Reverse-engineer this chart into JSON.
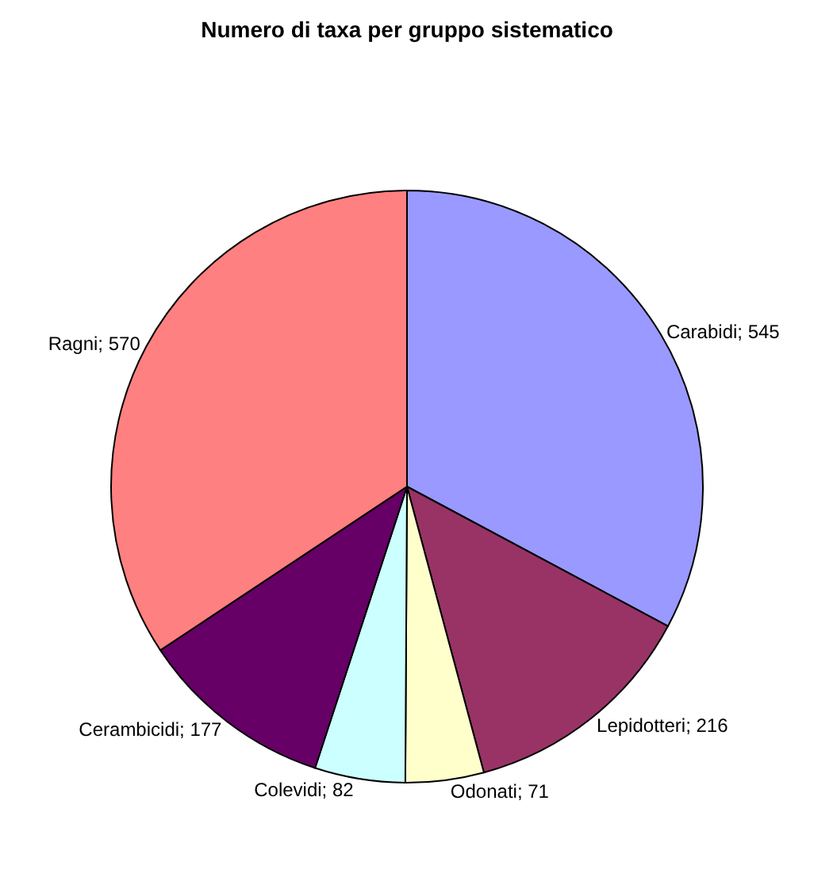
{
  "chart_data": {
    "type": "pie",
    "title": "Numero di taxa per gruppo sistematico",
    "categories": [
      "Carabidi; 545",
      "Lepidotteri; 216",
      "Odonati; 71",
      "Colevidi; 82",
      "Cerambicidi; 177",
      "Ragni; 570"
    ],
    "values": [
      545,
      216,
      71,
      82,
      177,
      570
    ],
    "colors": [
      "#9999ff",
      "#993366",
      "#ffffcc",
      "#ccffff",
      "#660066",
      "#ff8080"
    ],
    "legend": false
  }
}
